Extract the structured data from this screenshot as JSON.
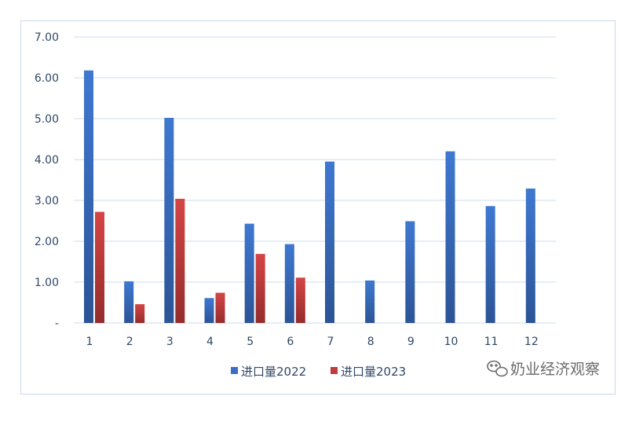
{
  "chart_data": {
    "type": "bar",
    "title": "",
    "xlabel": "",
    "ylabel": "",
    "categories": [
      "1",
      "2",
      "3",
      "4",
      "5",
      "6",
      "7",
      "8",
      "9",
      "10",
      "11",
      "12"
    ],
    "series": [
      {
        "name": "进口量2022",
        "values": [
          6.18,
          1.02,
          5.02,
          0.61,
          2.43,
          1.93,
          3.95,
          1.04,
          2.49,
          4.2,
          2.86,
          3.29
        ]
      },
      {
        "name": "进口量2023",
        "values": [
          2.72,
          0.46,
          3.04,
          0.74,
          1.69,
          1.11,
          null,
          null,
          null,
          null,
          null,
          null
        ]
      }
    ],
    "ylim": [
      0,
      7
    ],
    "yticks": [
      0,
      1,
      2,
      3,
      4,
      5,
      6,
      7
    ],
    "ytick_labels": [
      "-",
      "1.00",
      "2.00",
      "3.00",
      "4.00",
      "5.00",
      "6.00",
      "7.00"
    ],
    "grid": true,
    "legend": "bottom",
    "colors": {
      "series1": "#3b6fc1",
      "series2": "#c23b3b",
      "grid": "#d6e2f1",
      "text": "#2f4766"
    }
  },
  "watermark": {
    "text": "奶业经济观察",
    "icon": "wechat-icon"
  }
}
